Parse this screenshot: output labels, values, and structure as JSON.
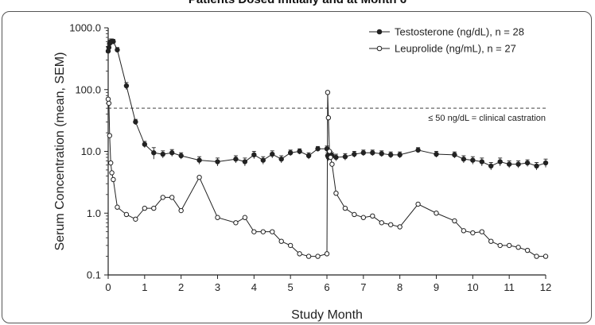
{
  "chart_data": {
    "type": "line",
    "title": "Patients Dosed Initially and at Month 6",
    "xlabel": "Study Month",
    "ylabel": "Serum Concentration (mean, SEM)",
    "yscale": "log",
    "xlim": [
      0,
      12
    ],
    "ylim": [
      0.1,
      1000
    ],
    "xticks": [
      "0",
      "1",
      "2",
      "3",
      "4",
      "5",
      "6",
      "7",
      "8",
      "9",
      "10",
      "11",
      "12"
    ],
    "yticks": [
      {
        "value": 1000,
        "label": "1000.0"
      },
      {
        "value": 100,
        "label": "100.0"
      },
      {
        "value": 10,
        "label": "10.0"
      },
      {
        "value": 1,
        "label": "1.0"
      },
      {
        "value": 0.1,
        "label": "0.1"
      }
    ],
    "legend_position": "top-right",
    "reference_line": {
      "value": 50,
      "label": "≤ 50 ng/dL = clinical castration"
    },
    "series": [
      {
        "name": "Testosterone (ng/dL), n = 28",
        "marker": "filled-circle",
        "x": [
          0,
          0.02,
          0.04,
          0.07,
          0.1,
          0.14,
          0.25,
          0.5,
          0.75,
          1,
          1.25,
          1.5,
          1.75,
          2,
          2.5,
          3,
          3.5,
          3.75,
          4,
          4.25,
          4.5,
          4.75,
          5,
          5.25,
          5.5,
          5.75,
          6,
          6.02,
          6.04,
          6.07,
          6.1,
          6.14,
          6.25,
          6.5,
          6.75,
          7,
          7.25,
          7.5,
          7.75,
          8,
          8.5,
          9,
          9.5,
          9.75,
          10,
          10.25,
          10.5,
          10.75,
          11,
          11.25,
          11.5,
          11.75,
          12
        ],
        "values": [
          420,
          480,
          560,
          590,
          600,
          600,
          440,
          115,
          30,
          13,
          9.5,
          9,
          9.5,
          8.5,
          7.2,
          6.8,
          7.5,
          6.8,
          8.8,
          7.2,
          9,
          7.5,
          9.5,
          10,
          8.5,
          11,
          11,
          8.5,
          8,
          8.5,
          9,
          8.5,
          8,
          8.2,
          9,
          9.5,
          9.5,
          9.2,
          8.8,
          8.8,
          10.5,
          9,
          8.8,
          7.5,
          7.2,
          6.8,
          5.8,
          6.8,
          6.2,
          6.2,
          6.5,
          5.8,
          6.5
        ],
        "sem": [
          60,
          60,
          70,
          70,
          60,
          50,
          40,
          15,
          3,
          1.5,
          2,
          1.2,
          1.2,
          1,
          1,
          1,
          1,
          1,
          1.2,
          1,
          1.2,
          1,
          1,
          1,
          1,
          1,
          1.2,
          1,
          1,
          1,
          1,
          1,
          1,
          1,
          1,
          1,
          1,
          1,
          1,
          1,
          1,
          1,
          1,
          1,
          1,
          1,
          0.8,
          1,
          0.8,
          0.8,
          0.8,
          0.8,
          1
        ]
      },
      {
        "name": "Leuprolide (ng/mL), n = 27",
        "marker": "open-circle",
        "x": [
          0,
          0.02,
          0.04,
          0.07,
          0.1,
          0.14,
          0.25,
          0.5,
          0.75,
          1,
          1.25,
          1.5,
          1.75,
          2,
          2.5,
          3,
          3.5,
          3.75,
          4,
          4.25,
          4.5,
          4.75,
          5,
          5.25,
          5.5,
          5.75,
          6,
          6.02,
          6.04,
          6.07,
          6.1,
          6.14,
          6.25,
          6.5,
          6.75,
          7,
          7.25,
          7.5,
          7.75,
          8,
          8.5,
          9,
          9.5,
          9.75,
          10,
          10.25,
          10.5,
          10.75,
          11,
          11.25,
          11.5,
          11.75,
          12
        ],
        "values": [
          70,
          60,
          18,
          6.5,
          4.5,
          3.5,
          1.25,
          0.95,
          0.8,
          1.2,
          1.2,
          1.8,
          1.8,
          1.1,
          3.8,
          0.85,
          0.7,
          0.85,
          0.5,
          0.5,
          0.5,
          0.35,
          0.3,
          0.22,
          0.2,
          0.2,
          0.22,
          90,
          35,
          10,
          8,
          6.2,
          2.1,
          1.2,
          0.95,
          0.85,
          0.9,
          0.7,
          0.65,
          0.6,
          1.4,
          1,
          0.75,
          0.52,
          0.48,
          0.5,
          0.35,
          0.3,
          0.3,
          0.28,
          0.25,
          0.2,
          0.2
        ]
      }
    ]
  }
}
